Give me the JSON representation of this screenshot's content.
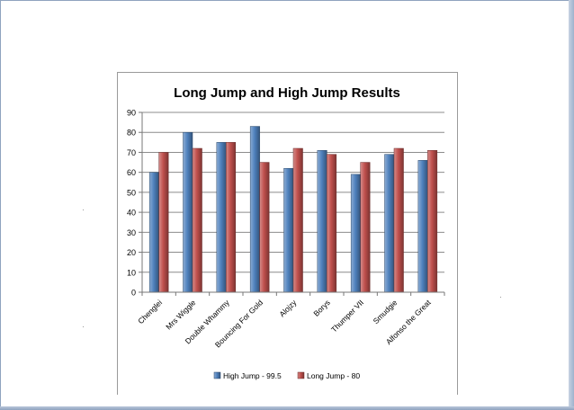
{
  "chart_data": {
    "type": "bar",
    "title": "Long Jump and High Jump Results",
    "xlabel": "",
    "ylabel": "",
    "categories": [
      "Chenglei",
      "Mrs Wiggle",
      "Double Whammy",
      "Bouncing For Gold",
      "Alojzy",
      "Borys",
      "Thumper VII",
      "Smudgie",
      "Alfonso the Great"
    ],
    "series": [
      {
        "name": "High Jump - 99.5",
        "color": "#4f81bd",
        "values": [
          60,
          80,
          75,
          83,
          62,
          71,
          59,
          69,
          66
        ]
      },
      {
        "name": "Long Jump - 80",
        "color": "#c0504d",
        "values": [
          70,
          72,
          75,
          65,
          72,
          69,
          65,
          72,
          71
        ]
      }
    ],
    "ylim": [
      0,
      90
    ],
    "yticks": [
      0,
      10,
      20,
      30,
      40,
      50,
      60,
      70,
      80,
      90
    ],
    "grid": true,
    "legend": "bottom"
  }
}
